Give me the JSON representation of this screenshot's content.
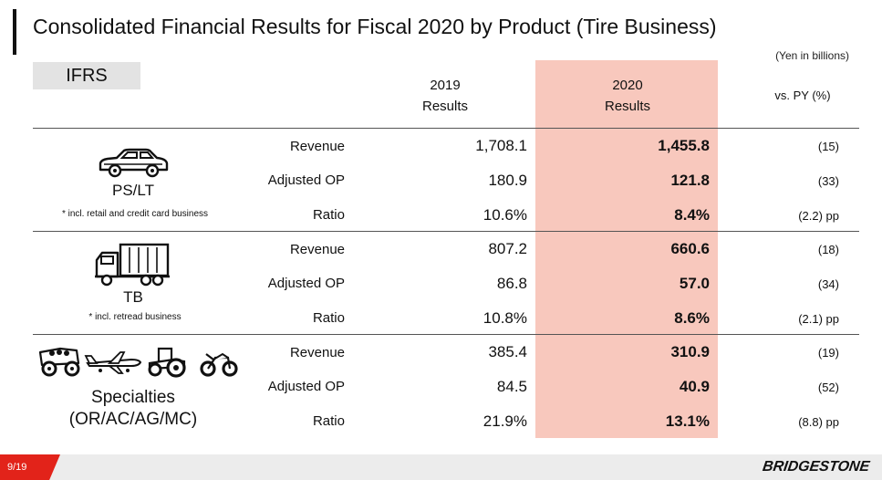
{
  "title": "Consolidated Financial Results for Fiscal 2020 by Product (Tire Business)",
  "unit_note": "(Yen in billions)",
  "standard_label": "IFRS",
  "header": {
    "col2019_line1": "2019",
    "col2019_line2": "Results",
    "col2020_line1": "2020",
    "col2020_line2": "Results",
    "vs_py": "vs. PY (%)"
  },
  "segments": [
    {
      "name": "PS/LT",
      "note": "* incl. retail and credit card business",
      "icon": "car-icon",
      "rows": [
        {
          "metric": "Revenue",
          "v2019": "1,708.1",
          "v2020": "1,455.8",
          "vs_py": "(15)"
        },
        {
          "metric": "Adjusted OP",
          "v2019": "180.9",
          "v2020": "121.8",
          "vs_py": "(33)"
        },
        {
          "metric": "Ratio",
          "v2019": "10.6%",
          "v2020": "8.4%",
          "vs_py": "(2.2) pp"
        }
      ]
    },
    {
      "name": "TB",
      "note": "* incl. retread business",
      "icon": "truck-icon",
      "rows": [
        {
          "metric": "Revenue",
          "v2019": "807.2",
          "v2020": "660.6",
          "vs_py": "(18)"
        },
        {
          "metric": "Adjusted OP",
          "v2019": "86.8",
          "v2020": "57.0",
          "vs_py": "(34)"
        },
        {
          "metric": "Ratio",
          "v2019": "10.8%",
          "v2020": "8.6%",
          "vs_py": "(2.1) pp"
        }
      ]
    },
    {
      "name_line1": "Specialties",
      "name_line2": "(OR/AC/AG/MC)",
      "icon": "specialty-vehicles-icon",
      "rows": [
        {
          "metric": "Revenue",
          "v2019": "385.4",
          "v2020": "310.9",
          "vs_py": "(19)"
        },
        {
          "metric": "Adjusted OP",
          "v2019": "84.5",
          "v2020": "40.9",
          "vs_py": "(52)"
        },
        {
          "metric": "Ratio",
          "v2019": "21.9%",
          "v2020": "13.1%",
          "vs_py": "(8.8) pp"
        }
      ]
    }
  ],
  "footer": {
    "page": "9/19",
    "brand": "BRIDGESTONE",
    "accent_color": "#e2231a",
    "highlight_color": "#f8c8bd"
  }
}
